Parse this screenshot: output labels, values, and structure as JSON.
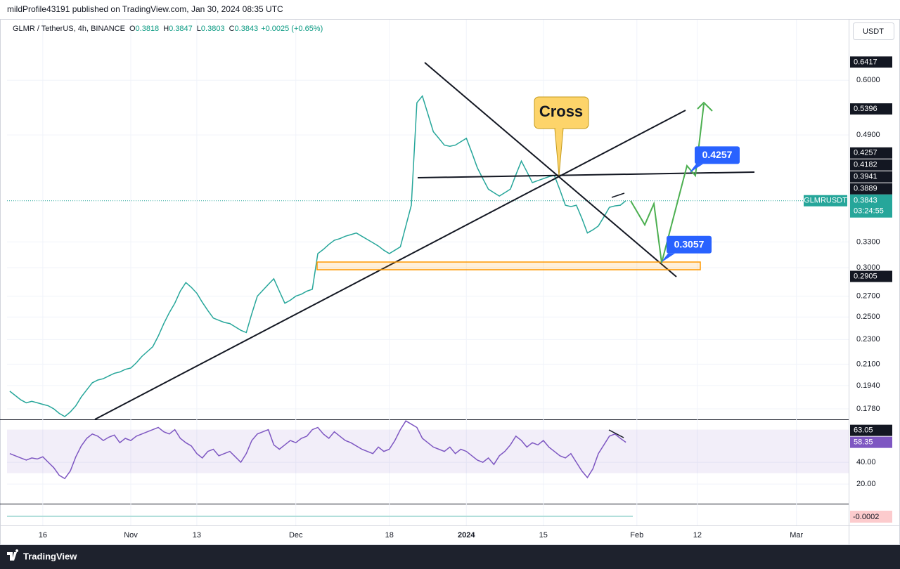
{
  "header": {
    "publisher": "mildProfile43191 published on TradingView.com, Jan 30, 2024 08:35 UTC",
    "symbol": "GLMR / TetherUS, 4h, BINANCE",
    "ohlc": [
      {
        "key": "O",
        "value": 0.3818
      },
      {
        "key": "H",
        "value": 0.3847
      },
      {
        "key": "L",
        "value": 0.3803
      },
      {
        "key": "C",
        "value": 0.3843
      }
    ],
    "change": "+0.0025 (+0.65%)",
    "currency": "USDT"
  },
  "chart_data": [
    {
      "type": "line",
      "log_scale": true,
      "grid": true,
      "categories": [
        null,
        null,
        null,
        null,
        null,
        null,
        "16",
        null,
        null,
        null,
        null,
        null,
        null,
        null,
        null,
        null,
        null,
        null,
        null,
        null,
        null,
        null,
        "Nov",
        null,
        null,
        null,
        null,
        null,
        null,
        null,
        null,
        null,
        null,
        null,
        "13",
        null,
        null,
        null,
        null,
        null,
        null,
        null,
        null,
        null,
        null,
        null,
        null,
        null,
        null,
        null,
        null,
        null,
        "Dec",
        null,
        null,
        null,
        null,
        null,
        null,
        null,
        null,
        null,
        null,
        null,
        null,
        null,
        null,
        null,
        null,
        "18",
        null,
        null,
        null,
        null,
        null,
        null,
        null,
        null,
        null,
        null,
        null,
        null,
        null,
        "2024",
        null,
        null,
        null,
        null,
        null,
        null,
        null,
        null,
        null,
        null,
        null,
        null,
        null,
        "15",
        null,
        null,
        null,
        null,
        null,
        null,
        null,
        null,
        null,
        null,
        null,
        null,
        null,
        null,
        null,
        null,
        "Feb",
        null,
        null,
        null,
        null,
        null,
        null,
        null,
        null,
        null,
        null,
        "12",
        null,
        null,
        null,
        null,
        null,
        null,
        null,
        null,
        null,
        null,
        null,
        null,
        null,
        null,
        null,
        null,
        null,
        "Mar",
        null,
        null,
        null,
        null,
        null,
        null,
        null,
        null,
        null
      ],
      "series": [
        {
          "name": "GLMRUSDT",
          "color": "#26a69a",
          "values": [
            0.19,
            0.187,
            0.184,
            0.182,
            0.183,
            0.182,
            0.181,
            0.18,
            0.178,
            0.175,
            0.173,
            0.176,
            0.18,
            0.186,
            0.191,
            0.196,
            0.198,
            0.199,
            0.201,
            0.203,
            0.204,
            0.206,
            0.207,
            0.211,
            0.216,
            0.22,
            0.224,
            0.233,
            0.244,
            0.254,
            0.263,
            0.275,
            0.284,
            0.279,
            0.273,
            0.264,
            0.256,
            0.249,
            0.247,
            0.245,
            0.244,
            0.241,
            0.238,
            0.236,
            0.253,
            0.27,
            0.276,
            0.282,
            0.288,
            0.275,
            0.263,
            0.266,
            0.27,
            0.272,
            0.275,
            0.277,
            0.316,
            0.321,
            0.327,
            0.332,
            0.334,
            0.337,
            0.339,
            0.341,
            0.337,
            0.333,
            0.329,
            0.325,
            0.32,
            0.316,
            0.32,
            0.324,
            0.35,
            0.378,
            0.552,
            0.566,
            0.53,
            0.496,
            0.484,
            0.472,
            0.47,
            0.472,
            0.478,
            0.484,
            0.459,
            0.434,
            0.417,
            0.401,
            0.396,
            0.391,
            0.396,
            0.401,
            0.423,
            0.445,
            0.428,
            0.411,
            0.414,
            0.417,
            0.42,
            0.422,
            0.4,
            0.378,
            0.376,
            0.378,
            0.36,
            0.341,
            0.345,
            0.35,
            0.362,
            0.375,
            0.377,
            0.378,
            0.3843,
            null,
            null,
            null,
            null,
            null,
            null,
            null,
            null,
            null,
            null,
            null,
            null,
            null,
            null,
            null,
            null,
            null,
            null,
            null,
            null,
            null,
            null,
            null,
            null,
            null,
            null,
            null,
            null,
            null,
            null,
            null,
            null,
            null,
            null,
            null,
            null,
            null,
            null,
            null,
            null
          ]
        }
      ],
      "ylim": [
        0.1712,
        0.7506
      ],
      "yticks": [
        {
          "value": 0.178,
          "label": "0.1780"
        },
        {
          "value": 0.194,
          "label": "0.1940"
        },
        {
          "value": 0.21,
          "label": "0.2100"
        },
        {
          "value": 0.23,
          "label": "0.2300"
        },
        {
          "value": 0.25,
          "label": "0.2500"
        },
        {
          "value": 0.27,
          "label": "0.2700"
        },
        {
          "value": 0.3,
          "label": "0.3000"
        },
        {
          "value": 0.33,
          "label": "0.3300"
        },
        {
          "value": 0.49,
          "label": "0.4900"
        },
        {
          "value": 0.6,
          "label": "0.6000"
        }
      ],
      "countdown": "03:24:55",
      "price_labels": [
        0.6417,
        0.5396,
        0.4257,
        0.4182,
        0.3941,
        0.3889,
        0.2905
      ],
      "cross_label": "Cross",
      "annotations": [
        0.4257,
        0.3057
      ]
    },
    {
      "type": "line",
      "color": "#7e57c2",
      "values": [
        48,
        46,
        44,
        42,
        44,
        43,
        45,
        40,
        35,
        28,
        25,
        32,
        45,
        55,
        62,
        66,
        64,
        60,
        63,
        65,
        58,
        62,
        60,
        64,
        66,
        68,
        70,
        72,
        68,
        66,
        70,
        62,
        58,
        55,
        48,
        44,
        50,
        52,
        46,
        48,
        50,
        45,
        40,
        48,
        60,
        66,
        68,
        70,
        56,
        52,
        56,
        60,
        58,
        62,
        64,
        70,
        72,
        66,
        62,
        68,
        64,
        60,
        58,
        55,
        52,
        50,
        48,
        54,
        50,
        52,
        60,
        70,
        78,
        75,
        72,
        62,
        58,
        54,
        52,
        50,
        54,
        48,
        52,
        50,
        46,
        42,
        40,
        44,
        38,
        46,
        50,
        56,
        64,
        60,
        54,
        58,
        56,
        60,
        54,
        50,
        46,
        44,
        48,
        40,
        32,
        26,
        34,
        48,
        56,
        64,
        66,
        62,
        58.35,
        null,
        null,
        null,
        null,
        null,
        null,
        null,
        null,
        null,
        null,
        null,
        null,
        null,
        null,
        null,
        null,
        null,
        null,
        null,
        null,
        null,
        null,
        null,
        null,
        null,
        null,
        null,
        null,
        null,
        null,
        null,
        null,
        null,
        null,
        null,
        null,
        null,
        null,
        null,
        null
      ],
      "ylim": [
        2,
        79.4
      ],
      "yticks": [
        {
          "value": 20,
          "label": "20.00"
        },
        {
          "value": 40,
          "label": "40.00"
        }
      ],
      "band": [
        30,
        70
      ],
      "price_labels": [
        63.05
      ]
    },
    {
      "type": "indicator",
      "last_value": -0.0002
    }
  ],
  "footer": {
    "brand": "TradingView"
  }
}
